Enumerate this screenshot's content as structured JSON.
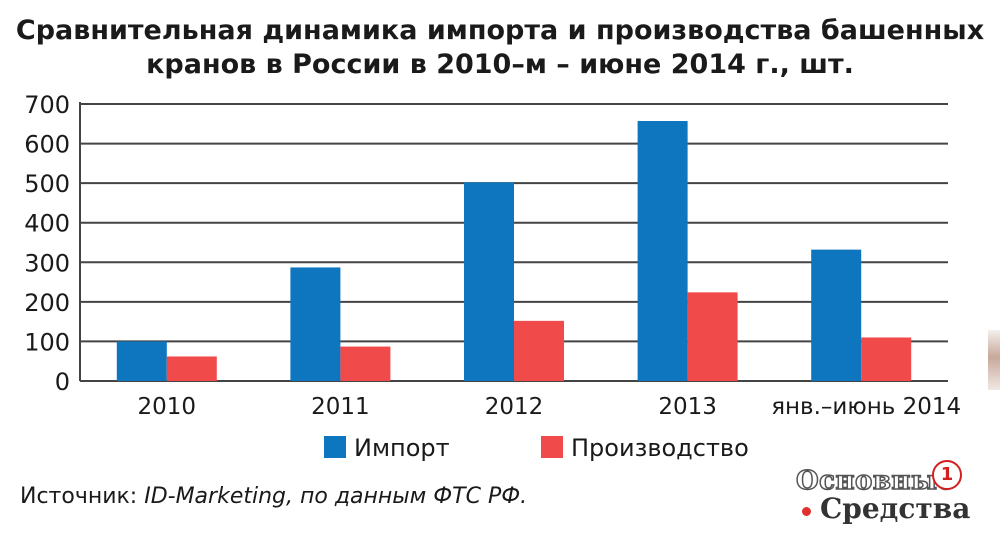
{
  "title": {
    "line1": "Сравнительная динамика импорта и производства башенных",
    "line2": "кранов в России в 2010–м – июне 2014 г., шт."
  },
  "chart_data": {
    "type": "bar",
    "categories": [
      "2010",
      "2011",
      "2012",
      "2013",
      "янв.–июнь 2014"
    ],
    "series": [
      {
        "name": "Импорт",
        "values": [
          100,
          287,
          502,
          657,
          332
        ],
        "color": "#0d76bf"
      },
      {
        "name": "Производство",
        "values": [
          62,
          87,
          152,
          224,
          110
        ],
        "color": "#f04a4a"
      }
    ],
    "yticks": [
      0,
      100,
      200,
      300,
      400,
      500,
      600,
      700
    ],
    "ylim": [
      0,
      700
    ],
    "grid": true,
    "legend_position": "bottom"
  },
  "source": {
    "prefix": "Источник: ",
    "text": "ID-Marketing, по данным ФТС РФ."
  },
  "brand": {
    "line1": "Основные",
    "line2": "Средства",
    "badge": "1",
    "dot_color": "#e03030"
  }
}
